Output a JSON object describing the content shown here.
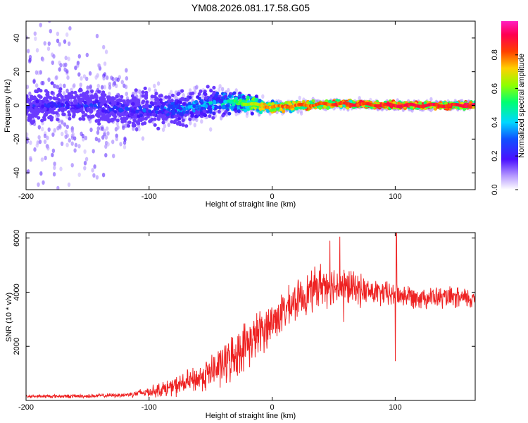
{
  "title": "YM08.2026.081.17.58.G05",
  "chart_data": [
    {
      "type": "heatmap",
      "name": "spectrogram",
      "xlabel": "Height of straight line (km)",
      "ylabel": "Frequency (Hz)",
      "xlim": [
        -200,
        165
      ],
      "ylim": [
        -50,
        50
      ],
      "xticks": [
        -200,
        -100,
        0,
        100
      ],
      "yticks": [
        -40,
        -20,
        0,
        20,
        40
      ],
      "colorbar": {
        "label": "Normalized spectral amplitude",
        "ticks": [
          0.0,
          0.2,
          0.4,
          0.6,
          0.8
        ],
        "range": [
          0,
          1
        ],
        "colors": [
          "#ffffff",
          "#6a00ff",
          "#2020ff",
          "#00d0ff",
          "#00ff60",
          "#a0ff00",
          "#ffa000",
          "#ff2000",
          "#ff00a0"
        ]
      },
      "ridge": [
        {
          "x": -200,
          "center": 0,
          "spread": 40,
          "amplitude": 0.25
        },
        {
          "x": -150,
          "center": 0,
          "spread": 38,
          "amplitude": 0.28
        },
        {
          "x": -110,
          "center": -3,
          "spread": 12,
          "amplitude": 0.3
        },
        {
          "x": -80,
          "center": -2,
          "spread": 9,
          "amplitude": 0.4
        },
        {
          "x": -50,
          "center": 1,
          "spread": 8,
          "amplitude": 0.45
        },
        {
          "x": -30,
          "center": 2,
          "spread": 6,
          "amplitude": 0.55
        },
        {
          "x": 0,
          "center": -1,
          "spread": 3,
          "amplitude": 0.8
        },
        {
          "x": 50,
          "center": 1,
          "spread": 2,
          "amplitude": 0.85
        },
        {
          "x": 100,
          "center": 0,
          "spread": 2,
          "amplitude": 0.9
        },
        {
          "x": 165,
          "center": 0,
          "spread": 2,
          "amplitude": 0.9
        }
      ]
    },
    {
      "type": "line",
      "name": "snr",
      "xlabel": "Height of straight line (km)",
      "ylabel": "SNR (10 * v/v)",
      "xlim": [
        -200,
        165
      ],
      "ylim": [
        0,
        6200
      ],
      "xticks": [
        -200,
        -100,
        0,
        100
      ],
      "yticks": [
        2000,
        4000,
        6000
      ],
      "color": "#ee2222",
      "envelope": [
        {
          "x": -200,
          "mean": 150,
          "amp": 60
        },
        {
          "x": -150,
          "mean": 160,
          "amp": 70
        },
        {
          "x": -120,
          "mean": 200,
          "amp": 80
        },
        {
          "x": -100,
          "mean": 320,
          "amp": 200
        },
        {
          "x": -80,
          "mean": 500,
          "amp": 350
        },
        {
          "x": -60,
          "mean": 800,
          "amp": 500
        },
        {
          "x": -40,
          "mean": 1300,
          "amp": 800
        },
        {
          "x": -20,
          "mean": 2100,
          "amp": 900
        },
        {
          "x": 0,
          "mean": 2900,
          "amp": 800
        },
        {
          "x": 20,
          "mean": 3700,
          "amp": 700
        },
        {
          "x": 40,
          "mean": 4300,
          "amp": 800
        },
        {
          "x": 60,
          "mean": 4200,
          "amp": 700
        },
        {
          "x": 80,
          "mean": 4000,
          "amp": 500
        },
        {
          "x": 100,
          "mean": 3900,
          "amp": 450
        },
        {
          "x": 130,
          "mean": 3800,
          "amp": 400
        },
        {
          "x": 165,
          "mean": 3750,
          "amp": 400
        }
      ],
      "spikes": [
        {
          "x": 55,
          "y": 6050
        },
        {
          "x": 47,
          "y": 5900
        },
        {
          "x": 101,
          "y": 6200
        },
        {
          "x": 100,
          "y": 1450
        },
        {
          "x": 58,
          "y": 2900
        }
      ]
    }
  ]
}
